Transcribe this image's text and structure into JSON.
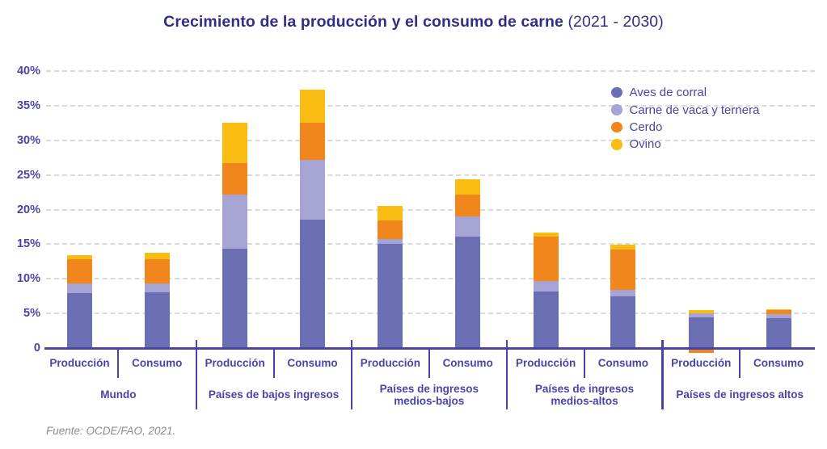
{
  "title": {
    "main": "Crecimiento de la producción y el consumo de carne",
    "period": "(2021 - 2030)"
  },
  "source": "Fuente: OCDE/FAO, 2021.",
  "colors": {
    "title": "#312E86",
    "axis_text": "#4B44A8",
    "axis_line": "#4B44A8",
    "gridline": "#D9D9D9",
    "source_text": "#8C8C8C"
  },
  "chart_data": {
    "type": "bar",
    "stacked": true,
    "title": "Crecimiento de la producción y el consumo de carne (2021 - 2030)",
    "unit": "%",
    "ylim": [
      0,
      40
    ],
    "grid": "horizontal dashed",
    "legend_position": "top-right",
    "yticks": [
      {
        "value": 40,
        "label": "40%"
      },
      {
        "value": 35,
        "label": "35%"
      },
      {
        "value": 30,
        "label": "30%"
      },
      {
        "value": 25,
        "label": "25%"
      },
      {
        "value": 20,
        "label": "20%"
      },
      {
        "value": 15,
        "label": "15%"
      },
      {
        "value": 10,
        "label": "10%"
      },
      {
        "value": 5,
        "label": "5%"
      },
      {
        "value": 0,
        "label": "0"
      }
    ],
    "series": [
      {
        "name": "Aves de corral",
        "color": "#6B6EB3"
      },
      {
        "name": "Carne de vaca y ternera",
        "color": "#A5A4D5"
      },
      {
        "name": "Cerdo",
        "color": "#F0861C"
      },
      {
        "name": "Ovino",
        "color": "#F8BC13"
      }
    ],
    "groups": [
      {
        "label": "Mundo",
        "bars": [
          {
            "label": "Producción",
            "values": [
              7.9,
              1.4,
              3.5,
              0.6
            ]
          },
          {
            "label": "Consumo",
            "values": [
              8.1,
              1.2,
              3.5,
              1.0
            ]
          }
        ]
      },
      {
        "label": "Países de bajos ingresos",
        "bars": [
          {
            "label": "Producción",
            "values": [
              14.3,
              7.8,
              4.6,
              5.8
            ]
          },
          {
            "label": "Consumo",
            "values": [
              18.5,
              8.7,
              5.3,
              4.8
            ]
          }
        ]
      },
      {
        "label": "Países de ingresos\nmedios-bajos",
        "bars": [
          {
            "label": "Producción",
            "values": [
              15.0,
              0.7,
              2.7,
              2.1
            ]
          },
          {
            "label": "Consumo",
            "values": [
              16.1,
              2.9,
              3.2,
              2.2
            ]
          }
        ]
      },
      {
        "label": "Países de ingresos\nmedios-altos",
        "bars": [
          {
            "label": "Producción",
            "values": [
              8.2,
              1.5,
              6.4,
              0.6
            ]
          },
          {
            "label": "Consumo",
            "values": [
              7.5,
              0.9,
              5.8,
              0.7
            ]
          }
        ]
      },
      {
        "label": "Países de ingresos altos",
        "bars": [
          {
            "label": "Producción",
            "values": [
              4.4,
              0.65,
              -0.55,
              0.45
            ]
          },
          {
            "label": "Consumo",
            "values": [
              4.3,
              0.55,
              0.6,
              0.1
            ]
          }
        ]
      }
    ]
  }
}
